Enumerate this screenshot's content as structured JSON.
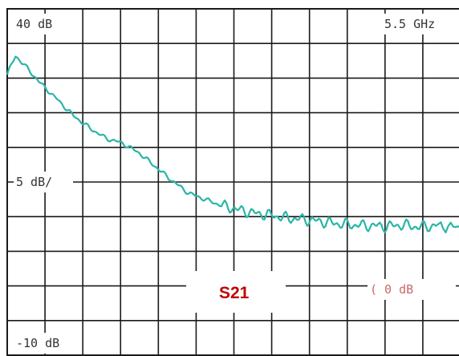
{
  "chart_data": {
    "type": "line",
    "title": "",
    "trace_label": "S21",
    "top_label": "40 dB",
    "scale_label": "5 dB/",
    "bottom_label": "-10 dB",
    "freq_label": "5.5 GHz",
    "ref_label": "( 0 dB",
    "ylim": [
      -10,
      40
    ],
    "xlim": [
      0,
      5.5
    ],
    "grid": true,
    "series": [
      {
        "color": "#2ab5a6",
        "x": [
          0,
          0.1,
          0.2,
          0.4,
          0.6,
          0.8,
          1.0,
          1.2,
          1.4,
          1.6,
          1.8,
          2.0,
          2.2,
          2.4,
          2.6,
          2.8,
          3.0,
          3.2,
          3.4,
          3.6,
          3.8,
          4.0,
          4.2,
          4.4,
          4.6,
          4.8,
          5.0,
          5.2,
          5.5
        ],
        "y": [
          30.5,
          33.2,
          32.0,
          29.3,
          27.0,
          24.6,
          22.8,
          21.3,
          20.6,
          19.2,
          17.2,
          15.2,
          13.4,
          12.5,
          11.6,
          11.0,
          10.5,
          10.2,
          9.8,
          9.6,
          9.3,
          9.0,
          8.8,
          8.7,
          8.6,
          8.8,
          8.5,
          8.7,
          8.4
        ]
      }
    ]
  }
}
